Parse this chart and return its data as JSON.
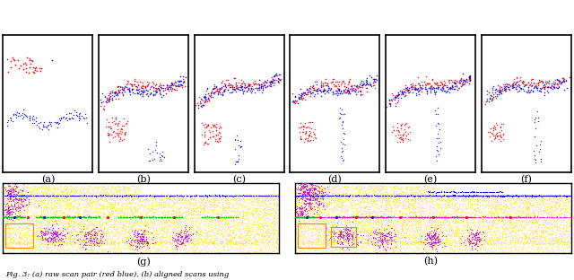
{
  "labels_top": [
    "(a)",
    "(b)",
    "(c)",
    "(d)",
    "(e)",
    "(f)"
  ],
  "labels_bottom": [
    "(g)",
    "(h)"
  ],
  "caption": "Fig. 3: (a) raw scan pair (red blue), (b) aligned scans using",
  "bg_color": "#ffffff"
}
